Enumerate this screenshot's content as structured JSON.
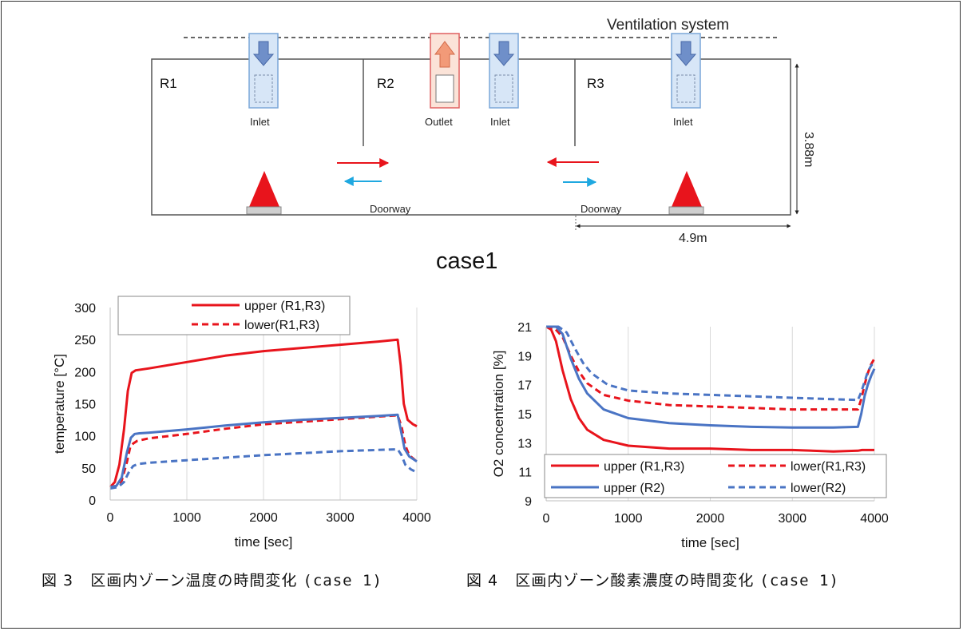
{
  "diagram": {
    "ventilation_label": "Ventilation system",
    "rooms": [
      "R1",
      "R2",
      "R3"
    ],
    "inlet_label": "Inlet",
    "outlet_label": "Outlet",
    "doorway_label": "Doorway",
    "height_label": "3.88m",
    "width_label": "4.9m",
    "case_label": "case1"
  },
  "figure3": {
    "caption_prefix": "図 3",
    "caption_text": "区画内ゾーン温度の時間変化",
    "caption_case": "(case 1)"
  },
  "figure4": {
    "caption_prefix": "図 4",
    "caption_text": "区画内ゾーン酸素濃度の時間変化",
    "caption_case": "(case 1)"
  },
  "chart_data": [
    {
      "type": "line",
      "title": "",
      "xlabel": "time [sec]",
      "ylabel": "temperature [°C]",
      "xlim": [
        0,
        4000
      ],
      "ylim": [
        0,
        300
      ],
      "xticks": [
        0,
        1000,
        2000,
        3000,
        4000
      ],
      "yticks": [
        0,
        50,
        100,
        150,
        200,
        250,
        300
      ],
      "grid": "vertical",
      "legend": "top",
      "colors": {
        "red": "#e8141c",
        "blue": "#4a74c4"
      },
      "series": [
        {
          "name": "upper (R1,R3)",
          "legend": true,
          "color": "#e8141c",
          "dash": false,
          "x": [
            0,
            60,
            120,
            180,
            230,
            280,
            330,
            500,
            1000,
            1500,
            2000,
            2500,
            3000,
            3500,
            3750,
            3790,
            3830,
            3880,
            3950,
            4000
          ],
          "y": [
            20,
            28,
            55,
            110,
            170,
            198,
            202,
            205,
            215,
            225,
            232,
            237,
            242,
            247,
            250,
            210,
            150,
            125,
            118,
            115
          ]
        },
        {
          "name": "lower(R1,R3)",
          "legend": true,
          "color": "#e8141c",
          "dash": true,
          "x": [
            0,
            80,
            150,
            220,
            260,
            300,
            350,
            500,
            1000,
            1500,
            2000,
            2500,
            3000,
            3500,
            3750,
            3800,
            3850,
            3900,
            4000
          ],
          "y": [
            20,
            22,
            30,
            60,
            82,
            88,
            92,
            96,
            103,
            111,
            118,
            122,
            126,
            130,
            132,
            115,
            85,
            70,
            60
          ]
        },
        {
          "name": "upper (R2)",
          "legend": false,
          "color": "#4a74c4",
          "dash": false,
          "x": [
            0,
            80,
            150,
            220,
            270,
            320,
            380,
            500,
            1000,
            1500,
            2000,
            2500,
            3000,
            3500,
            3750,
            3790,
            3840,
            3900,
            4000
          ],
          "y": [
            20,
            22,
            35,
            75,
            97,
            103,
            104,
            105,
            110,
            116,
            121,
            125,
            128,
            131,
            133,
            110,
            80,
            68,
            60
          ]
        },
        {
          "name": "lower(R2)",
          "legend": false,
          "color": "#4a74c4",
          "dash": true,
          "x": [
            0,
            100,
            180,
            250,
            300,
            360,
            500,
            1000,
            1500,
            2000,
            2500,
            3000,
            3500,
            3750,
            3800,
            3850,
            3920,
            4000
          ],
          "y": [
            18,
            20,
            28,
            45,
            53,
            56,
            58,
            62,
            66,
            70,
            73,
            76,
            78,
            79,
            70,
            55,
            48,
            43
          ]
        }
      ]
    },
    {
      "type": "line",
      "title": "",
      "xlabel": "time [sec]",
      "ylabel": "O2 concentration [%]",
      "xlim": [
        0,
        4000
      ],
      "ylim": [
        9,
        21
      ],
      "xticks": [
        0,
        1000,
        2000,
        3000,
        4000
      ],
      "yticks": [
        9,
        11,
        13,
        15,
        17,
        19,
        21
      ],
      "grid": "vertical",
      "legend": "bottom",
      "colors": {
        "red": "#e8141c",
        "blue": "#4a74c4"
      },
      "series": [
        {
          "name": "upper (R1,R3)",
          "color": "#e8141c",
          "dash": false,
          "x": [
            0,
            60,
            120,
            200,
            300,
            400,
            500,
            700,
            1000,
            1500,
            2000,
            2500,
            3000,
            3500,
            3800,
            3850,
            3900,
            3950,
            4000
          ],
          "y": [
            21,
            20.8,
            20,
            18,
            16,
            14.7,
            13.9,
            13.2,
            12.8,
            12.6,
            12.6,
            12.5,
            12.5,
            12.4,
            12.45,
            12.5,
            12.5,
            12.5,
            12.5
          ]
        },
        {
          "name": "lower(R1,R3)",
          "color": "#e8141c",
          "dash": true,
          "x": [
            0,
            100,
            200,
            300,
            400,
            500,
            700,
            1000,
            1500,
            2000,
            2500,
            3000,
            3500,
            3800,
            3840,
            3880,
            3920,
            3960,
            4000
          ],
          "y": [
            21,
            20.9,
            20.3,
            19,
            17.9,
            17.1,
            16.3,
            15.9,
            15.6,
            15.5,
            15.4,
            15.3,
            15.3,
            15.3,
            16,
            17,
            17.8,
            18.4,
            18.8
          ]
        },
        {
          "name": "upper (R2)",
          "color": "#4a74c4",
          "dash": false,
          "x": [
            0,
            120,
            200,
            300,
            400,
            500,
            700,
            1000,
            1500,
            2000,
            2500,
            3000,
            3500,
            3800,
            3840,
            3880,
            3920,
            3960,
            4000
          ],
          "y": [
            21,
            21,
            20.5,
            18.8,
            17.4,
            16.4,
            15.3,
            14.7,
            14.35,
            14.2,
            14.1,
            14.05,
            14.05,
            14.1,
            15,
            16.2,
            17,
            17.6,
            18.1
          ]
        },
        {
          "name": "lower(R2)",
          "color": "#4a74c4",
          "dash": true,
          "x": [
            0,
            150,
            250,
            350,
            450,
            550,
            750,
            1000,
            1500,
            2000,
            2500,
            3000,
            3500,
            3800,
            3840,
            3880,
            3920,
            3960,
            4000
          ],
          "y": [
            21,
            21,
            20.6,
            19.5,
            18.5,
            17.8,
            17.0,
            16.6,
            16.4,
            16.3,
            16.2,
            16.1,
            16.0,
            15.95,
            16.5,
            17.2,
            17.9,
            18.3,
            18.6
          ]
        }
      ]
    }
  ]
}
